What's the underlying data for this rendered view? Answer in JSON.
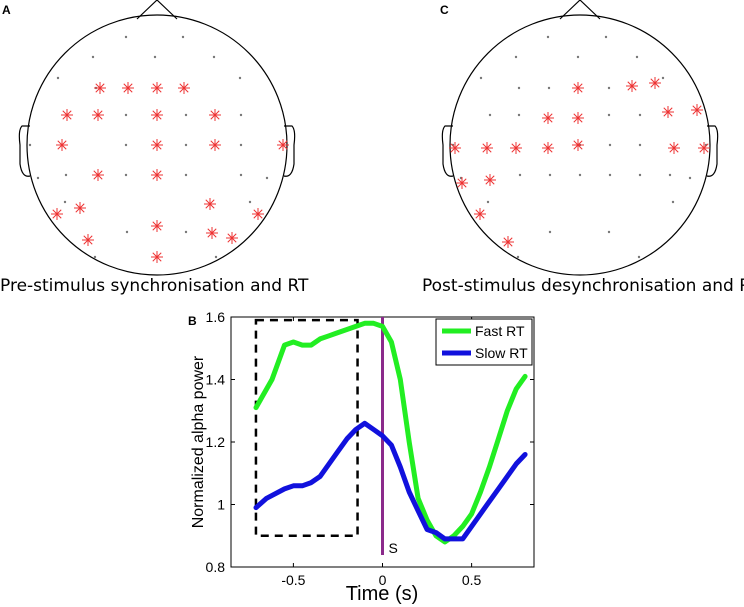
{
  "panels": {
    "a": {
      "letter": "A",
      "caption": "Pre-stimulus synchronisation and RT"
    },
    "b": {
      "letter": "B"
    },
    "c": {
      "letter": "C",
      "caption": "Post-stimulus desynchronisation and RT"
    }
  },
  "colors": {
    "fast": "#22ee22",
    "slow": "#1111dd",
    "stimulus": "#8b2a8b",
    "electrode_sig": "#ee3333",
    "electrode": "#777777"
  },
  "chart_data": {
    "type": "line",
    "title": "",
    "xlabel": "Time (s)",
    "ylabel": "Normalized alpha power",
    "xlim": [
      -0.85,
      0.85
    ],
    "ylim": [
      0.8,
      1.6
    ],
    "xticks": [
      -0.5,
      0,
      0.5
    ],
    "xtick_labels": [
      "-0.5",
      "0",
      "0.5"
    ],
    "yticks": [
      0.8,
      1,
      1.2,
      1.4,
      1.6
    ],
    "ytick_labels": [
      "0.8",
      "1",
      "1.2",
      "1.4",
      "1.6"
    ],
    "legend_position": "top-right",
    "series": [
      {
        "name": "Fast RT",
        "x": [
          -0.71,
          -0.62,
          -0.55,
          -0.5,
          -0.45,
          -0.4,
          -0.35,
          -0.3,
          -0.25,
          -0.2,
          -0.15,
          -0.1,
          -0.05,
          0.0,
          0.05,
          0.1,
          0.15,
          0.2,
          0.25,
          0.3,
          0.35,
          0.4,
          0.45,
          0.5,
          0.55,
          0.6,
          0.65,
          0.7,
          0.75,
          0.8
        ],
        "y": [
          1.31,
          1.4,
          1.51,
          1.52,
          1.51,
          1.51,
          1.53,
          1.54,
          1.55,
          1.56,
          1.57,
          1.58,
          1.58,
          1.57,
          1.52,
          1.4,
          1.2,
          1.02,
          0.95,
          0.9,
          0.88,
          0.9,
          0.93,
          0.97,
          1.04,
          1.12,
          1.21,
          1.3,
          1.37,
          1.41
        ]
      },
      {
        "name": "Slow RT",
        "x": [
          -0.71,
          -0.65,
          -0.55,
          -0.5,
          -0.45,
          -0.4,
          -0.35,
          -0.3,
          -0.25,
          -0.2,
          -0.15,
          -0.1,
          -0.05,
          0.0,
          0.05,
          0.1,
          0.15,
          0.2,
          0.25,
          0.3,
          0.35,
          0.4,
          0.45,
          0.5,
          0.55,
          0.6,
          0.65,
          0.7,
          0.75,
          0.8
        ],
        "y": [
          0.99,
          1.02,
          1.05,
          1.06,
          1.06,
          1.07,
          1.09,
          1.13,
          1.17,
          1.21,
          1.24,
          1.26,
          1.24,
          1.22,
          1.19,
          1.12,
          1.04,
          0.98,
          0.92,
          0.91,
          0.89,
          0.89,
          0.89,
          0.93,
          0.97,
          1.01,
          1.05,
          1.09,
          1.13,
          1.16
        ]
      }
    ],
    "annotations": [
      {
        "kind": "dashed-box",
        "x_range": [
          -0.71,
          -0.14
        ],
        "y_range": [
          0.9,
          1.59
        ]
      },
      {
        "kind": "stimulus-line",
        "x": 0.0,
        "label": "S"
      }
    ]
  }
}
